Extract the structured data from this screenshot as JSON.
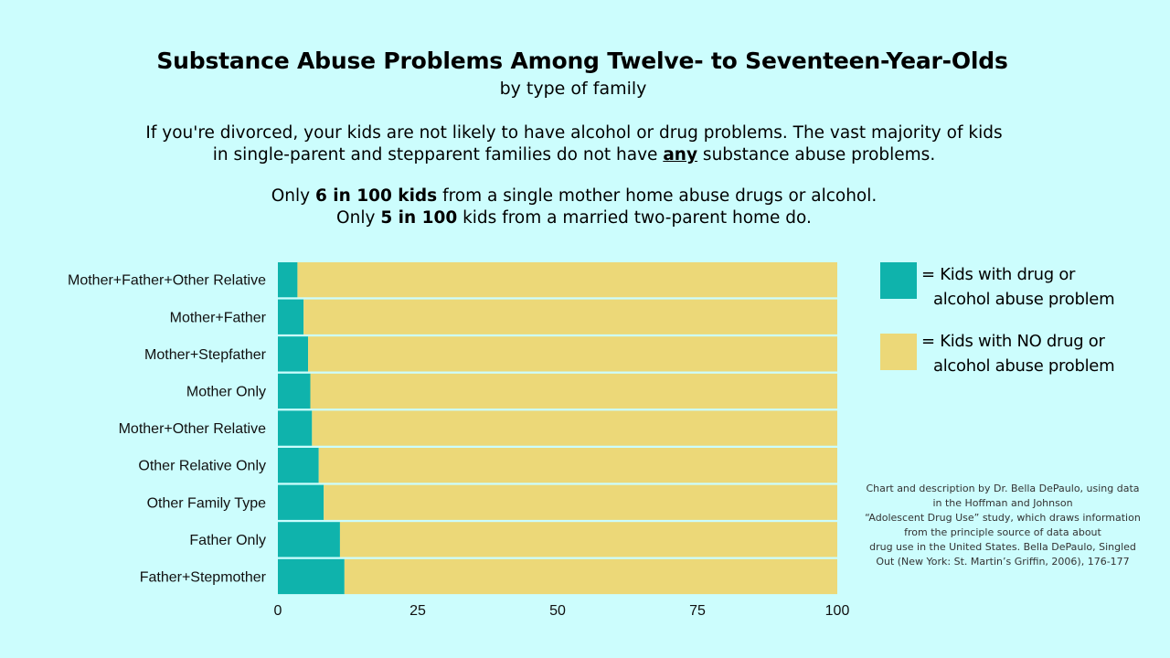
{
  "header": {
    "title": "Substance Abuse Problems Among Twelve- to Seventeen-Year-Olds",
    "subtitle": "by type of family"
  },
  "description": {
    "para1_a": "If you're divorced, your kids are not likely to have alcohol or drug problems. The vast majority of kids in single-parent and stepparent families do not have ",
    "para1_emph": "any",
    "para1_b": " substance abuse problems.",
    "line2_a": "Only ",
    "line2_bold": "6 in 100 kids",
    "line2_b": " from a single mother home abuse drugs or alcohol.",
    "line3_a": "Only ",
    "line3_bold": "5 in 100",
    "line3_b": " kids from a married two-parent home do."
  },
  "legend": {
    "with_problem_line1": "= Kids with drug or",
    "with_problem_line2": "alcohol abuse problem",
    "no_problem_line1": "= Kids with NO drug or",
    "no_problem_line2": "alcohol abuse problem"
  },
  "source_lines": [
    "Chart and description by Dr. Bella DePaulo, using data",
    "in the Hoffman and Johnson",
    "“Adolescent Drug Use” study, which draws information",
    "from the principle source of data about",
    "drug use in the United States. Bella DePaulo, Singled",
    "Out (New York: St. Martin’s Griffin, 2006), 176-177"
  ],
  "colors": {
    "background": "#ccfdfd",
    "with_problem": "#0fb3ac",
    "no_problem": "#ecd878"
  },
  "chart_data": {
    "type": "bar",
    "orientation": "horizontal",
    "stacked": true,
    "categories": [
      "Mother+Father+Other Relative",
      "Mother+Father",
      "Mother+Stepfather",
      "Mother Only",
      "Mother+Other Relative",
      "Other Relative Only",
      "Other Family Type",
      "Father Only",
      "Father+Stepmother"
    ],
    "series": [
      {
        "name": "= Kids with drug or alcohol abuse problem",
        "values": [
          3.5,
          4.6,
          5.4,
          5.8,
          6.1,
          7.3,
          8.2,
          11.1,
          11.9
        ]
      },
      {
        "name": "= Kids with NO drug or alcohol abuse problem",
        "values": [
          96.5,
          95.4,
          94.6,
          94.2,
          93.9,
          92.7,
          91.8,
          88.9,
          88.1
        ]
      }
    ],
    "xlim": [
      0,
      100
    ],
    "xticks": [
      0,
      25,
      50,
      75,
      100
    ],
    "grid": false,
    "legend_position": "right"
  }
}
